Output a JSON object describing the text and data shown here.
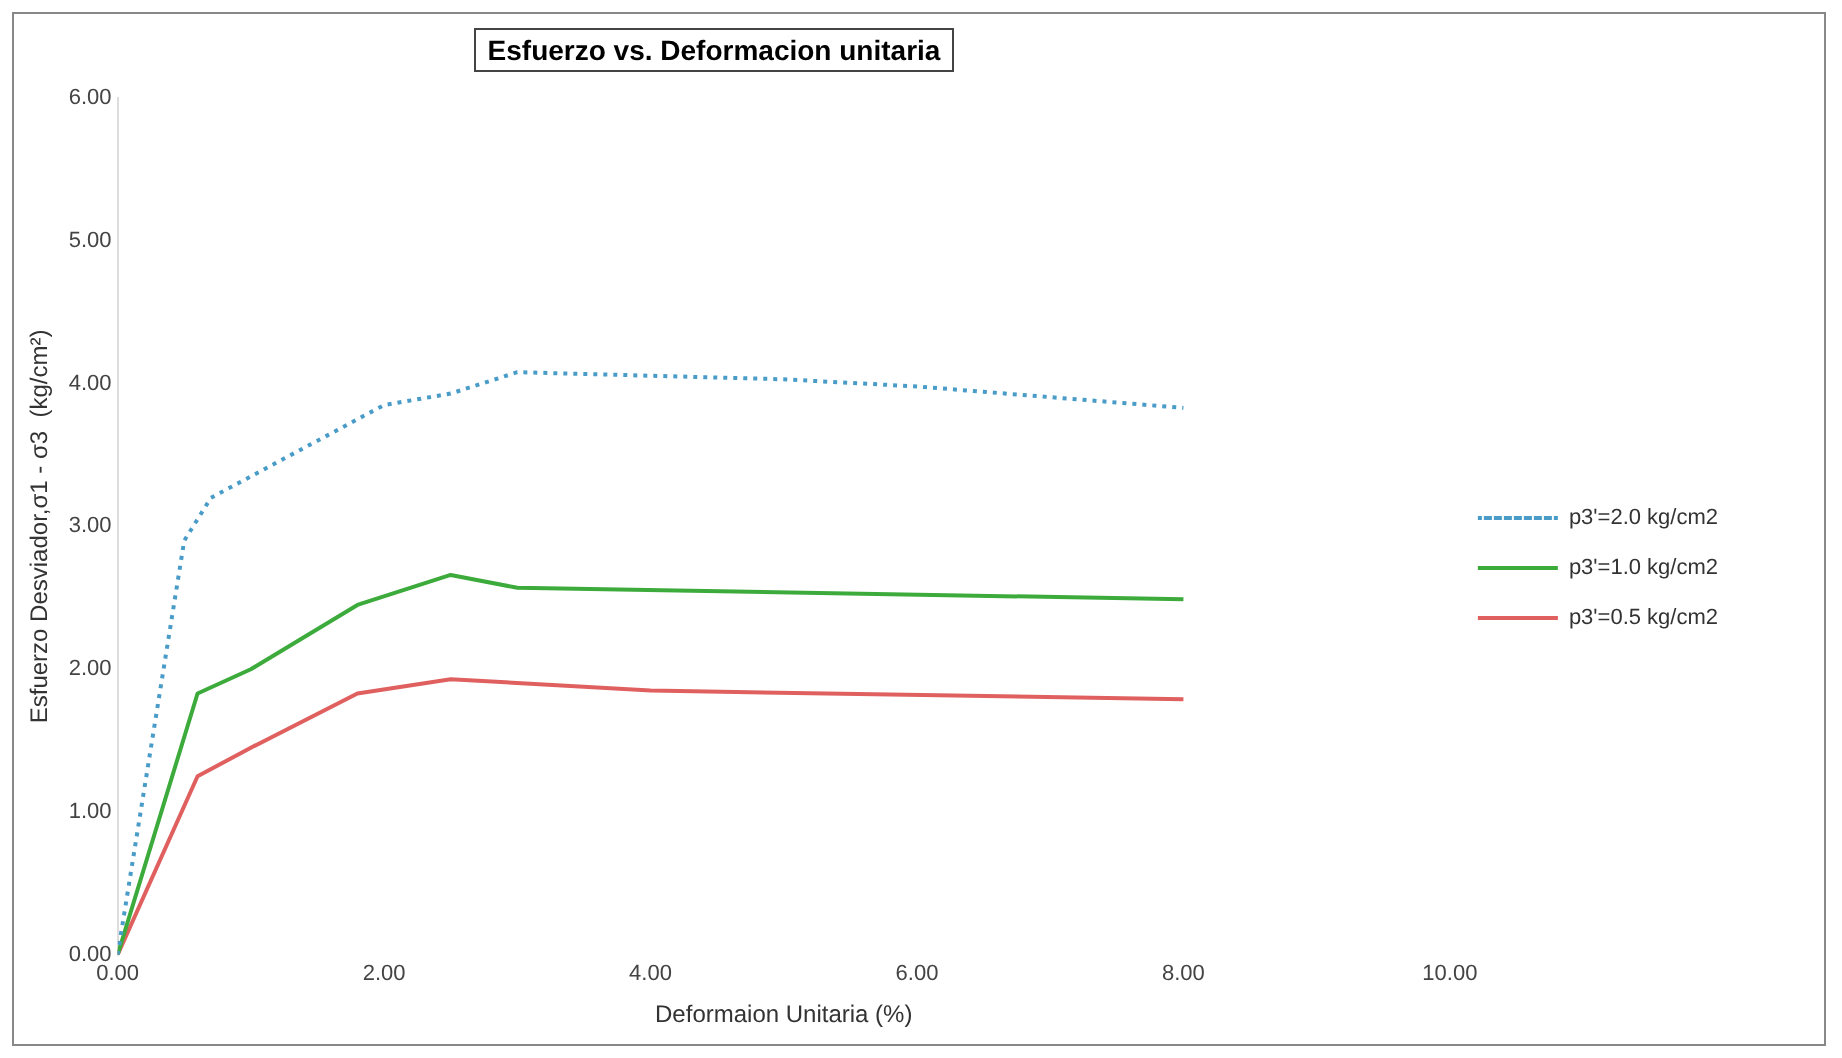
{
  "chart_data": {
    "type": "line",
    "title": "Esfuerzo vs. Deformacion unitaria",
    "xlabel": "Deformaion Unitaria (%)",
    "ylabel": "Esfuerzo Desviador,σ1 - σ3  (kg/cm²)",
    "xlim": [
      0,
      10
    ],
    "xticks": [
      {
        "value": 0,
        "label": "0.00"
      },
      {
        "value": 2,
        "label": "2.00"
      },
      {
        "value": 4,
        "label": "4.00"
      },
      {
        "value": 6,
        "label": "6.00"
      },
      {
        "value": 8,
        "label": "8.00"
      },
      {
        "value": 10,
        "label": "10.00"
      }
    ],
    "ylim": [
      0,
      6
    ],
    "yticks": [
      {
        "value": 0,
        "label": "0.00"
      },
      {
        "value": 1,
        "label": "1.00"
      },
      {
        "value": 2,
        "label": "2.00"
      },
      {
        "value": 3,
        "label": "3.00"
      },
      {
        "value": 4,
        "label": "4.00"
      },
      {
        "value": 5,
        "label": "5.00"
      },
      {
        "value": 6,
        "label": "6.00"
      }
    ],
    "grid": false,
    "legend": "right",
    "marker": "none",
    "series": [
      {
        "name": "p3'=2.0 kg/cm2",
        "color": "#4a9cc8",
        "line_style": "dotted",
        "x": [
          0,
          0.5,
          0.7,
          1.5,
          2.0,
          2.5,
          3.0,
          5.0,
          6.0,
          8.0
        ],
        "values": [
          0,
          2.9,
          3.2,
          3.6,
          3.85,
          3.93,
          4.08,
          4.03,
          3.98,
          3.83
        ]
      },
      {
        "name": "p3'=1.0 kg/cm2",
        "color": "#3cab3c",
        "line_style": "solid",
        "x": [
          0,
          0.6,
          1.0,
          1.8,
          2.5,
          3.0,
          8.0
        ],
        "values": [
          0,
          1.83,
          2.0,
          2.45,
          2.66,
          2.57,
          2.49
        ]
      },
      {
        "name": "p3'=0.5 kg/cm2",
        "color": "#e06060",
        "line_style": "solid",
        "x": [
          0,
          0.6,
          1.0,
          1.8,
          2.5,
          4.0,
          8.0
        ],
        "values": [
          0,
          1.25,
          1.45,
          1.83,
          1.93,
          1.85,
          1.79
        ]
      }
    ]
  }
}
